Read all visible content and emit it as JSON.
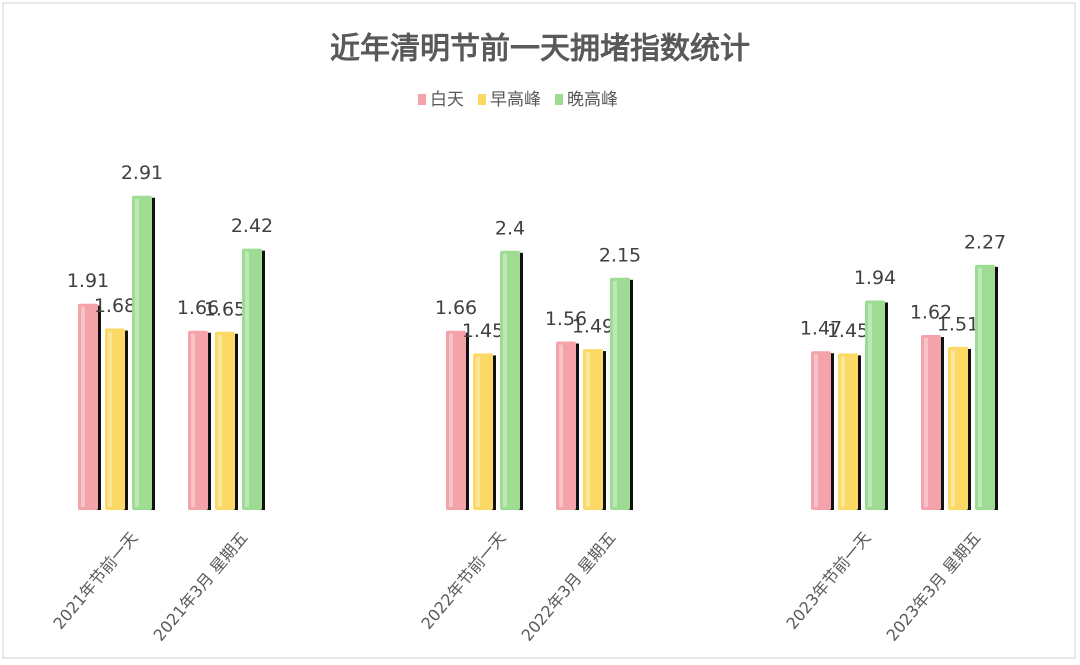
{
  "chart_data": {
    "type": "bar",
    "title": "近年清明节前一天拥堵指数统计",
    "categories": [
      "2021年节前一天",
      "2021年3月 星期五",
      "2022年节前一天",
      "2022年3月 星期五",
      "2023年节前一天",
      "2023年3月 星期五"
    ],
    "series": [
      {
        "name": "白天",
        "color": "#f4a3ab",
        "values": [
          1.91,
          1.66,
          1.66,
          1.56,
          1.47,
          1.62
        ]
      },
      {
        "name": "早高峰",
        "color": "#fbd964",
        "values": [
          1.68,
          1.65,
          1.45,
          1.49,
          1.45,
          1.51
        ]
      },
      {
        "name": "晚高峰",
        "color": "#9ddc92",
        "values": [
          2.91,
          2.42,
          2.4,
          2.15,
          1.94,
          2.27
        ]
      }
    ],
    "ylim": [
      0,
      3
    ],
    "legend": "top"
  }
}
